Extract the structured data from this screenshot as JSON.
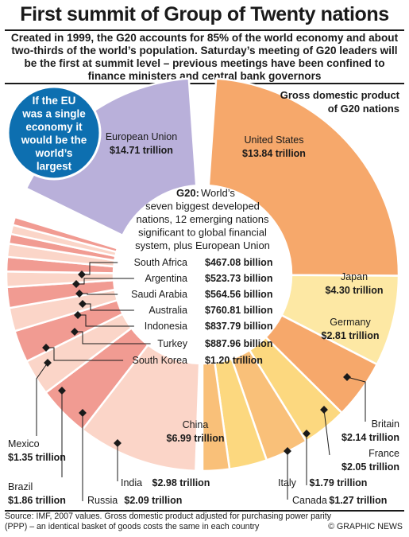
{
  "title": "First summit of Group of Twenty nations",
  "subtitle": "Created in 1999, the G20 accounts for 85% of the world economy and about two-thirds of the world’s population. Saturday’s meeting of G20 leaders will be the first at summit level – previous meetings have been confined to finance ministers and central bank governors",
  "eu_callout": [
    "If the EU",
    "was a single",
    "economy it",
    "would be the",
    "world’s",
    "largest"
  ],
  "center_text": {
    "lead": "G20:",
    "lines": [
      " World’s",
      "seven biggest developed",
      "nations, 12 emerging nations",
      "significant to global financial",
      "system, plus European Union"
    ]
  },
  "source": "Source: IMF, 2007 values. Gross domestic product adjusted for purchasing power parity (PPP) – an identical basket of goods costs the same in each country",
  "credit": "© GRAPHIC NEWS",
  "colors": {
    "eu": "#b9b0da",
    "developed": [
      "#f6a86b",
      "#f9c079",
      "#fcd87f",
      "#fde8a4"
    ],
    "emerging": [
      "#f19b92",
      "#fbd5c8"
    ],
    "badge": "#0d6fb0",
    "text": "#1a1a1a"
  },
  "chart_data": {
    "type": "pie",
    "title": "Gross domestic product of G20 nations",
    "unit": "trillion",
    "countries": [
      {
        "name": "European Union",
        "value": 14.71,
        "label": "$14.71 trillion",
        "group": "eu"
      },
      {
        "name": "United States",
        "value": 13.84,
        "label": "$13.84 trillion",
        "group": "developed"
      },
      {
        "name": "Japan",
        "value": 4.3,
        "label": "$4.30 trillion",
        "group": "developed"
      },
      {
        "name": "Germany",
        "value": 2.81,
        "label": "$2.81 trillion",
        "group": "developed"
      },
      {
        "name": "Britain",
        "value": 2.14,
        "label": "$2.14 trillion",
        "group": "developed"
      },
      {
        "name": "France",
        "value": 2.05,
        "label": "$2.05 trillion",
        "group": "developed"
      },
      {
        "name": "Italy",
        "value": 1.79,
        "label": "$1.79 trillion",
        "group": "developed"
      },
      {
        "name": "Canada",
        "value": 1.27,
        "label": "$1.27 trillion",
        "group": "developed"
      },
      {
        "name": "China",
        "value": 6.99,
        "label": "$6.99 trillion",
        "group": "emerging"
      },
      {
        "name": "India",
        "value": 2.98,
        "label": "$2.98 trillion",
        "group": "emerging"
      },
      {
        "name": "Russia",
        "value": 2.09,
        "label": "$2.09 trillion",
        "group": "emerging"
      },
      {
        "name": "Brazil",
        "value": 1.86,
        "label": "$1.86 trillion",
        "group": "emerging"
      },
      {
        "name": "Mexico",
        "value": 1.35,
        "label": "$1.35 trillion",
        "group": "emerging"
      },
      {
        "name": "South Korea",
        "value": 1.2,
        "label": "$1.20 trillion",
        "group": "emerging"
      },
      {
        "name": "Turkey",
        "value": 0.88796,
        "label": "$887.96 billion",
        "group": "emerging"
      },
      {
        "name": "Indonesia",
        "value": 0.83779,
        "label": "$837.79 billion",
        "group": "emerging"
      },
      {
        "name": "Australia",
        "value": 0.76081,
        "label": "$760.81 billion",
        "group": "emerging"
      },
      {
        "name": "Saudi Arabia",
        "value": 0.56456,
        "label": "$564.56 billion",
        "group": "emerging"
      },
      {
        "name": "Argentina",
        "value": 0.52373,
        "label": "$523.73 billion",
        "group": "emerging"
      },
      {
        "name": "South Africa",
        "value": 0.46708,
        "label": "$467.08 billion",
        "group": "emerging"
      }
    ]
  }
}
